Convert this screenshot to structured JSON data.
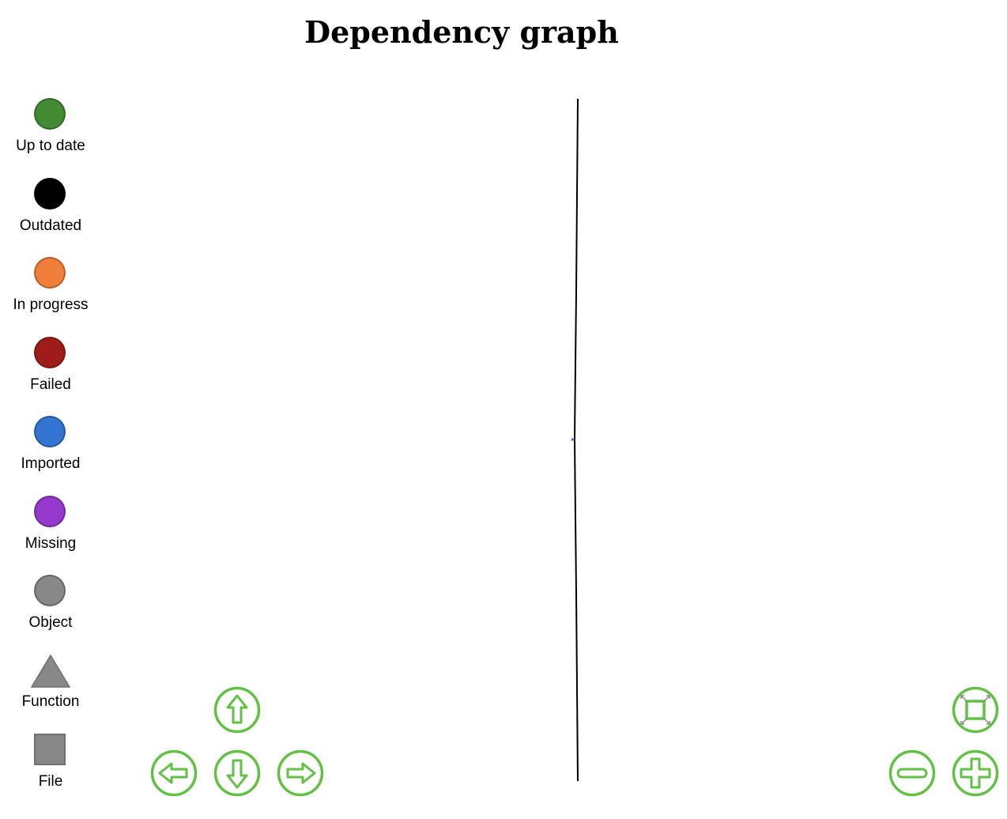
{
  "page": {
    "title": "Dependency graph"
  },
  "legend": {
    "items": [
      {
        "key": "up-to-date",
        "label": "Up to date",
        "shape": "circle",
        "color": "#438b33"
      },
      {
        "key": "outdated",
        "label": "Outdated",
        "shape": "circle",
        "color": "#000000"
      },
      {
        "key": "in-progress",
        "label": "In progress",
        "shape": "circle",
        "color": "#f07f3c"
      },
      {
        "key": "failed",
        "label": "Failed",
        "shape": "circle",
        "color": "#a01c18"
      },
      {
        "key": "imported",
        "label": "Imported",
        "shape": "circle",
        "color": "#3474d2"
      },
      {
        "key": "missing",
        "label": "Missing",
        "shape": "circle",
        "color": "#9538cc"
      },
      {
        "key": "object",
        "label": "Object",
        "shape": "circle",
        "color": "#888888"
      },
      {
        "key": "function",
        "label": "Function",
        "shape": "triangle",
        "color": "#888888"
      },
      {
        "key": "file",
        "label": "File",
        "shape": "square",
        "color": "#888888"
      }
    ]
  },
  "colors": {
    "nav_green": "#62c044",
    "edge": "#000000",
    "marker": "#3474d2"
  },
  "navigation": {
    "buttons": [
      {
        "key": "up",
        "icon": "arrow-up-icon"
      },
      {
        "key": "left",
        "icon": "arrow-left-icon"
      },
      {
        "key": "down",
        "icon": "arrow-down-icon"
      },
      {
        "key": "right",
        "icon": "arrow-right-icon"
      },
      {
        "key": "fit",
        "icon": "zoom-fit-icon"
      },
      {
        "key": "zoom-out",
        "icon": "minus-icon"
      },
      {
        "key": "zoom-in",
        "icon": "plus-icon"
      }
    ]
  }
}
